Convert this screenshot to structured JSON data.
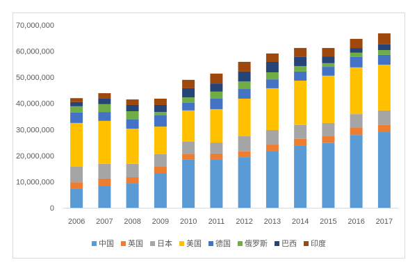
{
  "chart_data": {
    "type": "bar",
    "stacked": true,
    "categories": [
      "2006",
      "2007",
      "2008",
      "2009",
      "2010",
      "2011",
      "2012",
      "2013",
      "2014",
      "2015",
      "2016",
      "2017"
    ],
    "series": [
      {
        "name": "中国",
        "color": "#5B9BD5",
        "values": [
          7200000,
          8500000,
          9300000,
          13300000,
          18400000,
          18600000,
          19400000,
          21800000,
          23700000,
          24800000,
          27900000,
          29000000
        ]
      },
      {
        "name": "英国",
        "color": "#ED7D31",
        "values": [
          2600000,
          2700000,
          2400000,
          2400000,
          2100000,
          2200000,
          2200000,
          2400000,
          2700000,
          2600000,
          2700000,
          2700000
        ]
      },
      {
        "name": "日本",
        "color": "#A5A5A5",
        "values": [
          5900000,
          5600000,
          5100000,
          4800000,
          4800000,
          4200000,
          5800000,
          5600000,
          5300000,
          5100000,
          5300000,
          5600000
        ]
      },
      {
        "name": "美国",
        "color": "#FFC000",
        "values": [
          16800000,
          16500000,
          13500000,
          10600000,
          12000000,
          12800000,
          14400000,
          16000000,
          17000000,
          18100000,
          17900000,
          17500000
        ]
      },
      {
        "name": "德国",
        "color": "#4472C4",
        "values": [
          4000000,
          3400000,
          3500000,
          4300000,
          2900000,
          4000000,
          3700000,
          3400000,
          3500000,
          3400000,
          4000000,
          3800000
        ]
      },
      {
        "name": "俄罗斯",
        "color": "#70AD47",
        "values": [
          2400000,
          3000000,
          3200000,
          1300000,
          2100000,
          2700000,
          2900000,
          2700000,
          2100000,
          1400000,
          1600000,
          1800000
        ]
      },
      {
        "name": "巴西",
        "color": "#264478",
        "values": [
          1600000,
          2100000,
          2400000,
          2700000,
          3500000,
          3100000,
          3800000,
          4000000,
          3500000,
          2600000,
          1800000,
          2200000
        ]
      },
      {
        "name": "印度",
        "color": "#9E480E",
        "values": [
          1500000,
          2100000,
          2100000,
          2400000,
          3200000,
          3800000,
          3700000,
          3200000,
          3400000,
          3200000,
          3500000,
          4200000
        ]
      }
    ],
    "ylim": [
      0,
      70000000
    ],
    "y_ticks": [
      0,
      10000000,
      20000000,
      30000000,
      40000000,
      50000000,
      60000000,
      70000000
    ],
    "y_tick_labels": [
      "0",
      "10,000,000",
      "20,000,000",
      "30,000,000",
      "40,000,000",
      "50,000,000",
      "60,000,000",
      "70,000,000"
    ],
    "grid": false,
    "legend": "bottom"
  }
}
